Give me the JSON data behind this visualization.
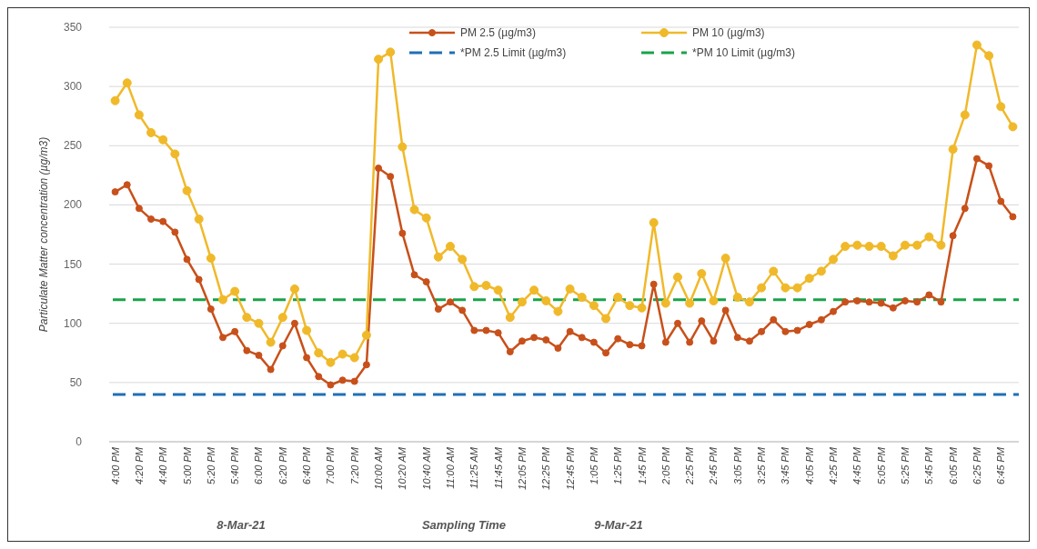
{
  "chart_data": {
    "type": "line",
    "ylabel": "Particulate Matter concentration (µg/m3)",
    "xlabel": "Sampling Time",
    "categories": [
      "4:00 PM",
      null,
      "4:20 PM",
      null,
      "4:40 PM",
      null,
      "5:00 PM",
      null,
      "5:20 PM",
      null,
      "5:40 PM",
      null,
      "6:00 PM",
      null,
      "6:20 PM",
      null,
      "6:40 PM",
      null,
      "7:00 PM",
      null,
      "7:20 PM",
      null,
      "10:00 AM",
      null,
      "10:20 AM",
      null,
      "10:40 AM",
      null,
      "11:00 AM",
      null,
      "11:25 AM",
      null,
      "11:45 AM",
      null,
      "12:05 PM",
      null,
      "12:25 PM",
      null,
      "12:45 PM",
      null,
      "1:05 PM",
      null,
      "1:25 PM",
      null,
      "1:45 PM",
      null,
      "2:05 PM",
      null,
      "2:25 PM",
      null,
      "2:45 PM",
      null,
      "3:05 PM",
      null,
      "3:25 PM",
      null,
      "3:45 PM",
      null,
      "4:05 PM",
      null,
      "4:25 PM",
      null,
      "4:45 PM",
      null,
      "5:05 PM",
      null,
      "5:25 PM",
      null,
      "5:45 PM",
      null,
      "6:05 PM",
      null,
      "6:25 PM",
      null,
      "6:45 PM",
      null
    ],
    "series": [
      {
        "name": "PM 2.5 (µg/m3)",
        "color": "#c8501a",
        "values": [
          211,
          217,
          197,
          188,
          186,
          177,
          154,
          137,
          112,
          88,
          93,
          77,
          73,
          61,
          81,
          100,
          71,
          55,
          48,
          52,
          51,
          65,
          231,
          224,
          176,
          141,
          135,
          112,
          118,
          111,
          94,
          94,
          92,
          76,
          85,
          88,
          86,
          79,
          93,
          88,
          84,
          75,
          87,
          82,
          81,
          133,
          84,
          100,
          84,
          102,
          85,
          111,
          88,
          85,
          93,
          103,
          93,
          94,
          99,
          103,
          110,
          118,
          119,
          118,
          117,
          113,
          119,
          118,
          124,
          118,
          174,
          197,
          239,
          233,
          203,
          190
        ]
      },
      {
        "name": "PM 10 (µg/m3)",
        "color": "#f0b92a",
        "values": [
          288,
          303,
          276,
          261,
          255,
          243,
          212,
          188,
          155,
          120,
          127,
          105,
          100,
          84,
          105,
          129,
          94,
          75,
          67,
          74,
          71,
          90,
          323,
          329,
          249,
          196,
          189,
          156,
          165,
          154,
          131,
          132,
          128,
          105,
          118,
          128,
          119,
          110,
          129,
          122,
          115,
          104,
          122,
          115,
          113,
          185,
          117,
          139,
          117,
          142,
          119,
          155,
          122,
          118,
          130,
          144,
          130,
          130,
          138,
          144,
          154,
          165,
          166,
          165,
          165,
          157,
          166,
          166,
          173,
          166,
          247,
          276,
          335,
          326,
          283,
          266
        ]
      }
    ],
    "ref_lines": [
      {
        "axis": "y",
        "value": 40,
        "label": "*PM 2.5 Limit (µg/m3)",
        "color": "#1f6fb5",
        "line_style": "dashed"
      },
      {
        "axis": "y",
        "value": 120,
        "label": "*PM 10 Limit (µg/m3)",
        "color": "#1aa34a",
        "line_style": "dashed"
      }
    ],
    "annotations": [
      "8-Mar-21",
      "9-Mar-21"
    ],
    "ylim": [
      0,
      350
    ],
    "yticks": [
      0,
      50,
      100,
      150,
      200,
      250,
      300,
      350
    ],
    "grid": "y",
    "legend": "top",
    "marker": "circle",
    "line_style": "solid"
  }
}
